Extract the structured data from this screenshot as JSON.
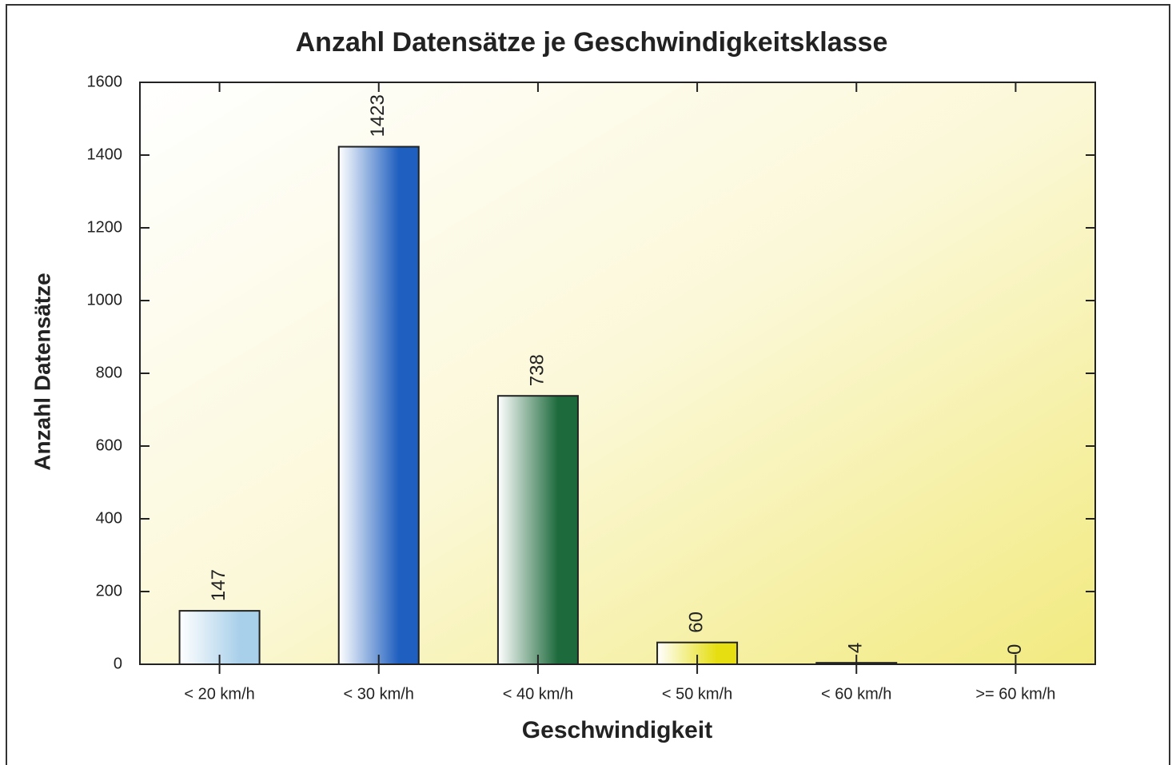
{
  "chart_data": {
    "type": "bar",
    "title": "Anzahl Datensätze je Geschwindigkeitsklasse",
    "x_label": "Geschwindigkeit",
    "y_label": "Anzahl Datensätze",
    "categories": [
      "< 20 km/h",
      "< 30 km/h",
      "< 40 km/h",
      "< 50 km/h",
      "< 60 km/h",
      ">= 60 km/h"
    ],
    "values": [
      147,
      1423,
      738,
      60,
      4,
      0
    ],
    "colors": [
      "#a9d0ea",
      "#1f5fbf",
      "#1d6a3c",
      "#e6de10",
      "#3d3a1a",
      "#e6de10"
    ],
    "ylim": [
      0,
      1600
    ],
    "yticks": [
      0,
      200,
      400,
      600,
      800,
      1000,
      1200,
      1400,
      1600
    ]
  }
}
